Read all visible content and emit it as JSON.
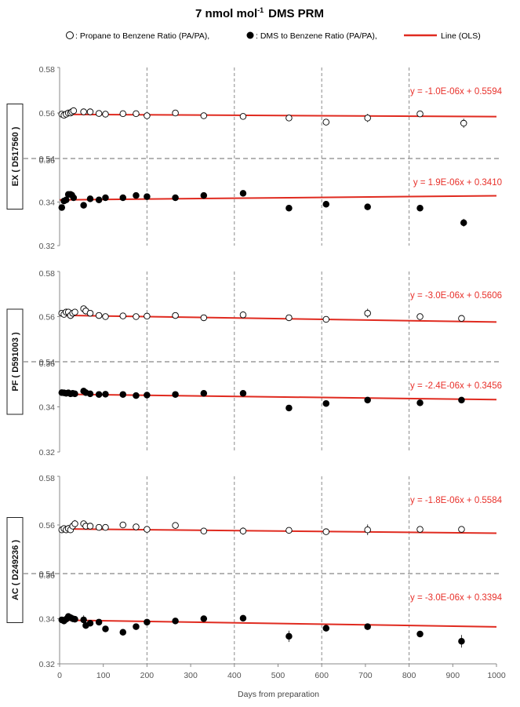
{
  "title_main": "7 nmol mol",
  "title_sup": "-1",
  "title_tail": "DMS PRM",
  "legend": {
    "open_marker_label": ": Propane to Benzene Ratio (PA/PA),",
    "filled_marker_label": ": DMS to Benzene Ratio (PA/PA),",
    "line_label": "Line (OLS)"
  },
  "colors": {
    "ols_line": "#e02b20",
    "marker": "#000000",
    "axis": "#888888",
    "grid": "#999999"
  },
  "chart_data": {
    "type": "scatter",
    "xlabel": "Days from preparation",
    "xlim": [
      0,
      1000
    ],
    "xticks": [
      0,
      100,
      200,
      300,
      400,
      500,
      600,
      700,
      800,
      900,
      1000
    ],
    "vlines": [
      200,
      400,
      600,
      800
    ],
    "cylinders": [
      {
        "label": "EX ( D517560 )",
        "propane": {
          "ylim": [
            0.54,
            0.58
          ],
          "yticks": [
            "0.58",
            "0.56",
            "0.54"
          ],
          "x": [
            5,
            10,
            15,
            20,
            25,
            28,
            32,
            55,
            70,
            90,
            105,
            145,
            175,
            200,
            265,
            330,
            420,
            525,
            610,
            705,
            825,
            925
          ],
          "y": [
            0.5595,
            0.559,
            0.5595,
            0.56,
            0.56,
            0.5605,
            0.561,
            0.5605,
            0.5605,
            0.5598,
            0.5595,
            0.5597,
            0.5597,
            0.5588,
            0.56,
            0.5588,
            0.5585,
            0.5578,
            0.556,
            0.5578,
            0.5596,
            0.5555
          ],
          "err": [
            0,
            0,
            0,
            0,
            0,
            0.001,
            0.0015,
            0,
            0,
            0,
            0,
            0,
            0,
            0,
            0,
            0,
            0,
            0.0012,
            0,
            0.0018,
            0.0012,
            0.002
          ],
          "fit": {
            "slope": -1e-06,
            "intercept": 0.5594,
            "equation": "y = -1.0E-06x + 0.5594"
          }
        },
        "dms": {
          "ylim": [
            0.32,
            0.36
          ],
          "yticks": [
            "0.36",
            "0.34",
            "0.32"
          ],
          "x": [
            5,
            10,
            15,
            20,
            25,
            28,
            32,
            55,
            70,
            90,
            105,
            145,
            175,
            200,
            265,
            330,
            420,
            525,
            610,
            705,
            825,
            925
          ],
          "y": [
            0.3375,
            0.3405,
            0.341,
            0.3435,
            0.3435,
            0.3432,
            0.342,
            0.3385,
            0.3415,
            0.341,
            0.342,
            0.342,
            0.343,
            0.3425,
            0.342,
            0.343,
            0.344,
            0.3372,
            0.339,
            0.3378,
            0.3372,
            0.3305
          ],
          "err": [
            0,
            0,
            0,
            0.0012,
            0.0015,
            0.001,
            0,
            0.001,
            0.001,
            0,
            0,
            0,
            0,
            0,
            0,
            0,
            0,
            0,
            0.0015,
            0,
            0.0012,
            0.0018
          ],
          "fit": {
            "slope": 1.9e-06,
            "intercept": 0.341,
            "equation": "y = 1.9E-06x + 0.3410"
          }
        }
      },
      {
        "label": "PF ( D591003 )",
        "propane": {
          "ylim": [
            0.54,
            0.58
          ],
          "yticks": [
            "0.58",
            "0.56",
            "0.54"
          ],
          "x": [
            5,
            10,
            15,
            20,
            25,
            30,
            35,
            55,
            60,
            70,
            90,
            105,
            145,
            175,
            200,
            265,
            330,
            420,
            525,
            610,
            705,
            825,
            920
          ],
          "y": [
            0.5615,
            0.561,
            0.562,
            0.562,
            0.5605,
            0.5615,
            0.562,
            0.5635,
            0.5625,
            0.5615,
            0.5605,
            0.56,
            0.5603,
            0.56,
            0.5602,
            0.5605,
            0.5595,
            0.5608,
            0.5595,
            0.5588,
            0.5615,
            0.56,
            0.5592
          ],
          "err": [
            0,
            0,
            0.0015,
            0,
            0.0015,
            0.001,
            0,
            0.001,
            0.001,
            0,
            0,
            0,
            0,
            0,
            0,
            0,
            0,
            0.0015,
            0,
            0,
            0.002,
            0,
            0
          ],
          "fit": {
            "slope": -3e-06,
            "intercept": 0.5606,
            "equation": "y = -3.0E-06x + 0.5606"
          }
        },
        "dms": {
          "ylim": [
            0.32,
            0.36
          ],
          "yticks": [
            "0.36",
            "0.34",
            "0.32"
          ],
          "x": [
            5,
            10,
            15,
            20,
            25,
            30,
            35,
            55,
            60,
            70,
            90,
            105,
            145,
            175,
            200,
            265,
            330,
            420,
            525,
            610,
            705,
            825,
            920
          ],
          "y": [
            0.3463,
            0.3462,
            0.346,
            0.3462,
            0.3458,
            0.346,
            0.3458,
            0.347,
            0.3463,
            0.3458,
            0.3455,
            0.3456,
            0.3455,
            0.345,
            0.3452,
            0.3455,
            0.346,
            0.346,
            0.3395,
            0.3415,
            0.343,
            0.3418,
            0.343
          ],
          "err": [
            0,
            0,
            0,
            0,
            0,
            0,
            0,
            0,
            0,
            0,
            0,
            0,
            0,
            0,
            0,
            0,
            0,
            0,
            0,
            0.0012,
            0,
            0,
            0.001
          ],
          "fit": {
            "slope": -2.4e-06,
            "intercept": 0.3456,
            "equation": "y = -2.4E-06x + 0.3456"
          }
        }
      },
      {
        "label": "AC ( D249236 )",
        "propane": {
          "ylim": [
            0.54,
            0.58
          ],
          "yticks": [
            "0.58",
            "0.56",
            "0.54"
          ],
          "x": [
            5,
            10,
            15,
            20,
            25,
            30,
            35,
            55,
            60,
            70,
            90,
            105,
            145,
            175,
            200,
            265,
            330,
            420,
            525,
            610,
            705,
            825,
            920
          ],
          "y": [
            0.558,
            0.5585,
            0.558,
            0.5585,
            0.558,
            0.5595,
            0.5605,
            0.5605,
            0.5595,
            0.5595,
            0.559,
            0.559,
            0.56,
            0.5592,
            0.5582,
            0.5598,
            0.5575,
            0.5575,
            0.5578,
            0.5572,
            0.558,
            0.5582,
            0.5582
          ],
          "err": [
            0,
            0.0012,
            0,
            0.0015,
            0.001,
            0.0015,
            0.0015,
            0.001,
            0,
            0,
            0,
            0,
            0,
            0,
            0,
            0,
            0,
            0.0015,
            0,
            0,
            0.0022,
            0.001,
            0
          ],
          "fit": {
            "slope": -1.8e-06,
            "intercept": 0.5584,
            "equation": "y = -1.8E-06x + 0.5584"
          }
        },
        "dms": {
          "ylim": [
            0.32,
            0.36
          ],
          "yticks": [
            "0.36",
            "0.34",
            "0.32"
          ],
          "x": [
            5,
            10,
            15,
            20,
            25,
            30,
            35,
            55,
            60,
            70,
            90,
            105,
            145,
            175,
            200,
            265,
            330,
            420,
            525,
            610,
            705,
            825,
            920
          ],
          "y": [
            0.3395,
            0.339,
            0.3398,
            0.341,
            0.3405,
            0.34,
            0.3398,
            0.3395,
            0.337,
            0.338,
            0.3385,
            0.3355,
            0.334,
            0.3365,
            0.3385,
            0.339,
            0.34,
            0.3402,
            0.3322,
            0.3358,
            0.3365,
            0.3332,
            0.33
          ],
          "err": [
            0,
            0,
            0.0012,
            0,
            0,
            0.0015,
            0,
            0.002,
            0.0015,
            0,
            0,
            0,
            0.0012,
            0,
            0,
            0,
            0,
            0,
            0.0025,
            0,
            0,
            0,
            0.0028
          ],
          "fit": {
            "slope": -3e-06,
            "intercept": 0.3394,
            "equation": "y = -3.0E-06x + 0.3394"
          }
        }
      }
    ]
  }
}
